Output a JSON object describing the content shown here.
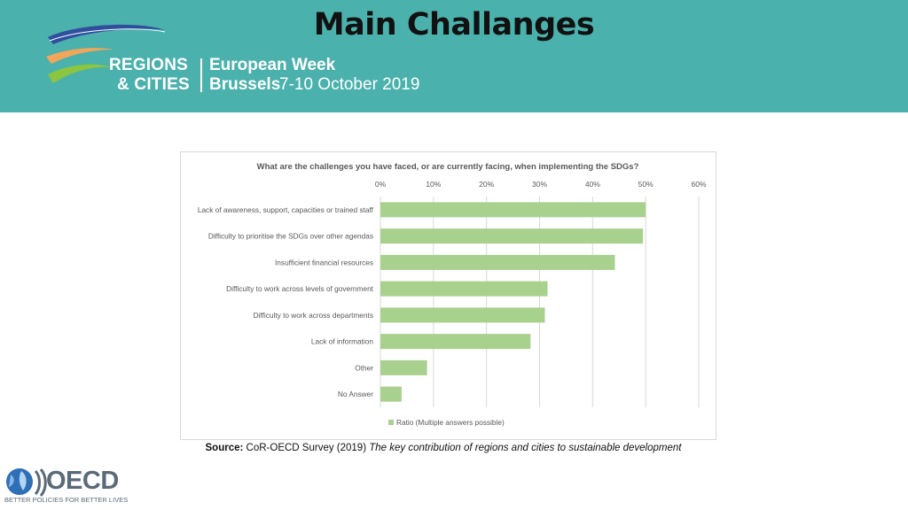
{
  "slide": {
    "title": "Main Challanges"
  },
  "event_logo": {
    "line1": "REGIONS",
    "line2": "& CITIES",
    "week": "European Week",
    "city": "Brussels",
    "dates": "7-10 October 2019"
  },
  "chart_data": {
    "type": "bar",
    "orientation": "horizontal",
    "title": "What are the challenges you have faced, or are currently facing, when implementing the SDGs?",
    "categories": [
      "Lack of awareness, support, capacities or trained staff",
      "Difficulty to prioritise the SDGs over other agendas",
      "Insufficient financial resources",
      "Difficulty to work across levels of government",
      "Difficulty to work across departments",
      "Lack of information",
      "Other",
      "No Answer"
    ],
    "series": [
      {
        "name": "Ratio (Multiple answers possible)",
        "values": [
          0.5,
          0.495,
          0.442,
          0.315,
          0.31,
          0.283,
          0.088,
          0.04
        ]
      }
    ],
    "xlim": [
      0,
      0.6
    ],
    "xticks": [
      "0%",
      "10%",
      "20%",
      "30%",
      "40%",
      "50%",
      "60%"
    ],
    "xaxis_position": "top",
    "gridlines": true,
    "legend": "bottom",
    "colors": {
      "bar": "#a9d18e",
      "grid": "#d9d9d9"
    }
  },
  "source": {
    "label": "Source:",
    "text": "CoR-OECD Survey (2019)",
    "title": "The key contribution of regions and cities to sustainable development"
  },
  "oecd": {
    "wordmark": "OECD",
    "tagline": "BETTER POLICIES FOR BETTER LIVES"
  }
}
